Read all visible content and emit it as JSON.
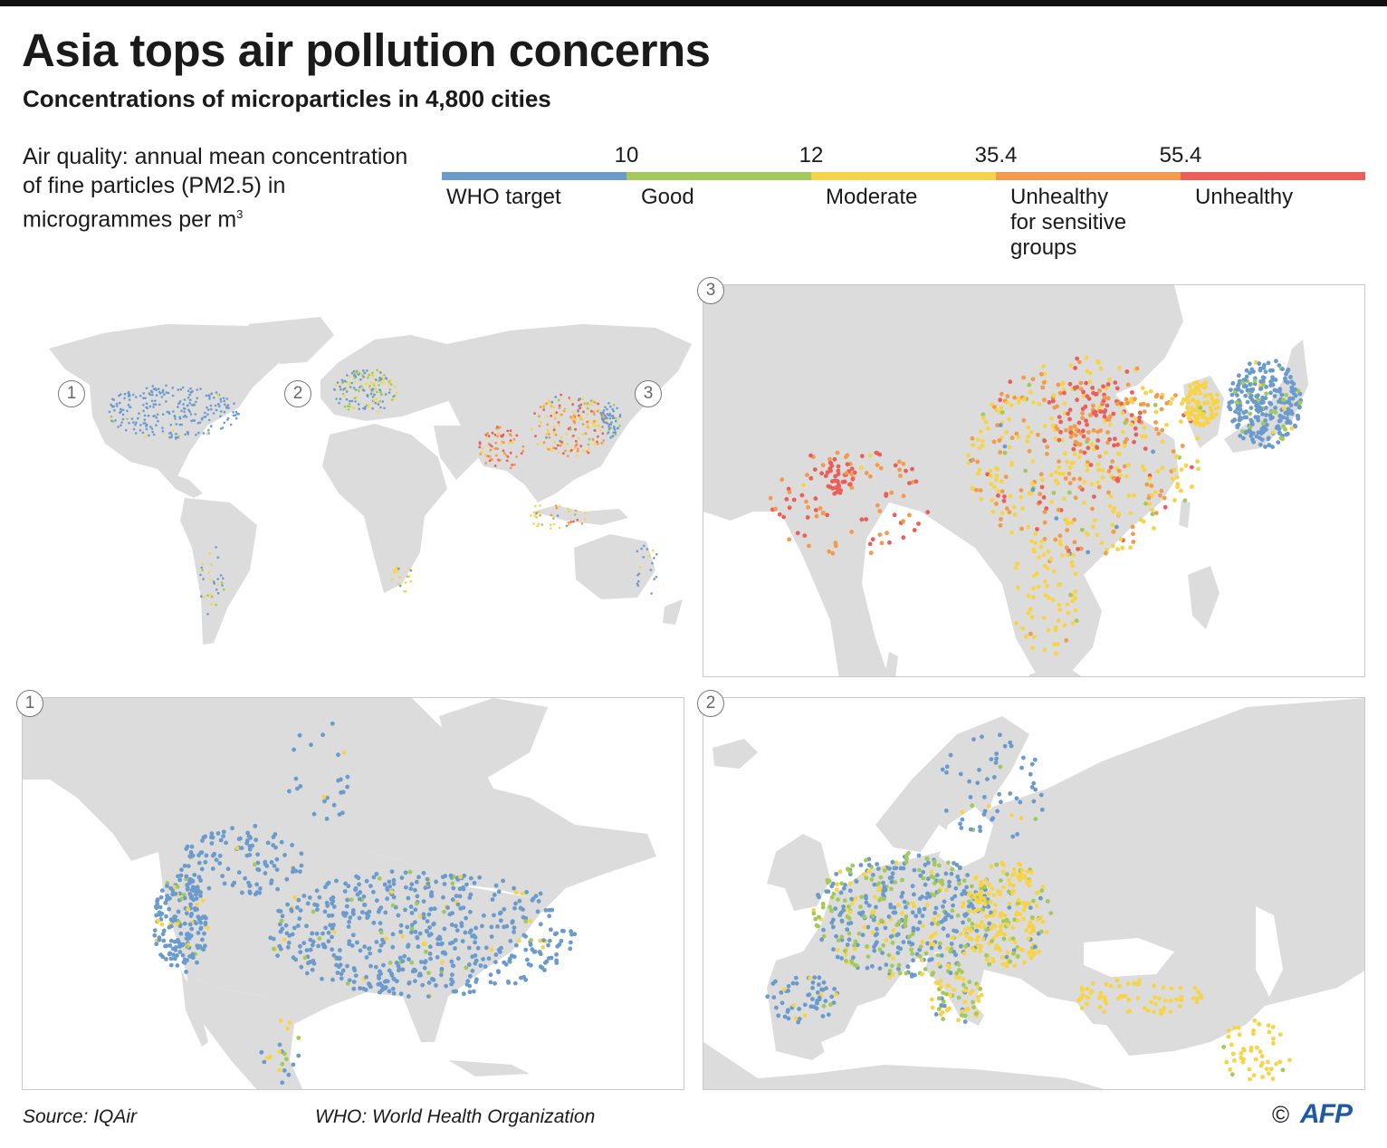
{
  "header": {
    "title": "Asia tops air pollution concerns",
    "subtitle": "Concentrations of microparticles in 4,800 cities"
  },
  "legend": {
    "description": "Air quality: annual mean concentration of fine particles (PM2.5) in microgrammes per m",
    "description_sup": "3",
    "thresholds": [
      "10",
      "12",
      "35.4",
      "55.4"
    ],
    "categories": [
      {
        "label": "WHO target",
        "color": "#6b9bcc"
      },
      {
        "label": "Good",
        "color": "#a3c95a"
      },
      {
        "label": "Moderate",
        "color": "#f7d447"
      },
      {
        "label": "Unhealthy\nfor sensitive\ngroups",
        "color": "#f39a4c"
      },
      {
        "label": "Unhealthy",
        "color": "#ea5f5a"
      }
    ]
  },
  "map_colors": {
    "land": "#dcdcdc",
    "sea": "#ffffff"
  },
  "panels": {
    "world": {
      "region_markers": [
        "1",
        "2",
        "3"
      ]
    },
    "asia": {
      "number": "3"
    },
    "north_america": {
      "number": "1"
    },
    "europe": {
      "number": "2"
    }
  },
  "footer": {
    "source": "Source: IQAir",
    "note": "WHO: World Health Organization",
    "copyright": "©",
    "agency": "AFP"
  }
}
